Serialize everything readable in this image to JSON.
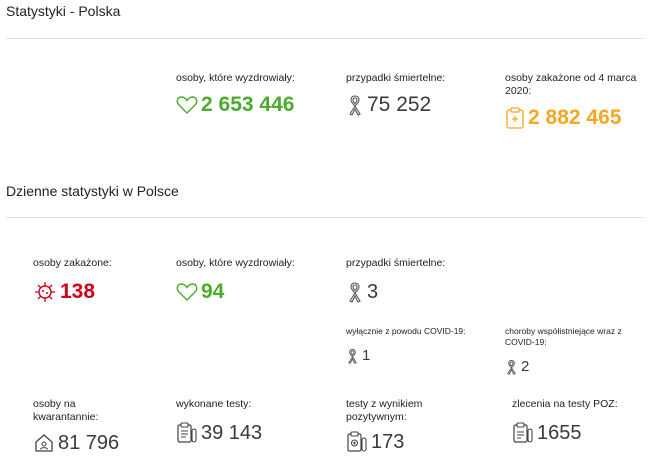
{
  "poland": {
    "title": "Statystyki - Polska",
    "recovered": {
      "label": "osoby, które wyzdrowiały:",
      "value": "2 653 446",
      "icon": "heart-icon"
    },
    "deaths": {
      "label": "przypadki śmiertelne:",
      "value": "75 252",
      "icon": "ribbon-icon"
    },
    "infected": {
      "label": "osoby zakażone od 4 marca 2020:",
      "value": "2 882 465",
      "icon": "clipboard-icon"
    }
  },
  "daily": {
    "title": "Dzienne statystyki w Polsce",
    "infected": {
      "label": "osoby zakażone:",
      "value": "138",
      "icon": "virus-icon"
    },
    "recovered": {
      "label": "osoby, które wyzdrowiały:",
      "value": "94",
      "icon": "heart-icon"
    },
    "deaths": {
      "label": "przypadki śmiertelne:",
      "value": "3",
      "icon": "ribbon-icon"
    },
    "deaths_covid_only": {
      "label": "wyłącznie z powodu COVID-19:",
      "value": "1"
    },
    "deaths_comorbid": {
      "label": "choroby współistniejące wraz z COVID-19:",
      "value": "2"
    },
    "quarantine": {
      "label": "osoby na kwarantannie:",
      "value": "81 796",
      "icon": "house-icon"
    },
    "tests_done": {
      "label": "wykonane testy:",
      "value": "39 143",
      "icon": "test-clipboard-icon"
    },
    "tests_positive": {
      "label": "testy z wynikiem pozytywnym:",
      "value": "173",
      "icon": "positive-test-icon"
    },
    "poz_orders": {
      "label": "zlecenia na testy POZ:",
      "value": "1655",
      "icon": "poz-order-icon"
    }
  },
  "colors": {
    "green": "#4caa2e",
    "red": "#d0021b",
    "orange": "#f5a623",
    "dark": "#3a3a3a"
  }
}
